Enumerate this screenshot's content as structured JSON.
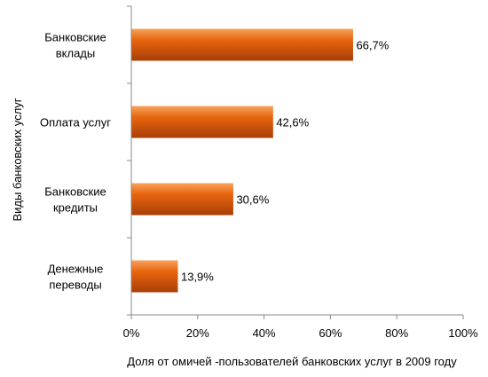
{
  "chart_data": {
    "type": "bar",
    "orientation": "horizontal",
    "categories": [
      [
        "Банковские",
        "вклады"
      ],
      [
        "Оплата услуг"
      ],
      [
        "Банковские",
        "кредиты"
      ],
      [
        "Денежные",
        "переводы"
      ]
    ],
    "values": [
      66.7,
      42.6,
      30.6,
      13.9
    ],
    "data_labels": [
      "66,7%",
      "42,6%",
      "30,6%",
      "13,9%"
    ],
    "xlabel": "Доля от омичей -пользователей банковских услуг в 2009 году",
    "ylabel": "Виды банковских услуг",
    "xlim": [
      0,
      100
    ],
    "xticks": [
      0,
      20,
      40,
      60,
      80,
      100
    ],
    "xtick_labels": [
      "0%",
      "20%",
      "40%",
      "60%",
      "80%",
      "100%"
    ],
    "grid": false,
    "legend": "none",
    "bar_color_light": "#f7a35c",
    "bar_color": "#e8650e",
    "bar_color_dark": "#a83e08"
  }
}
